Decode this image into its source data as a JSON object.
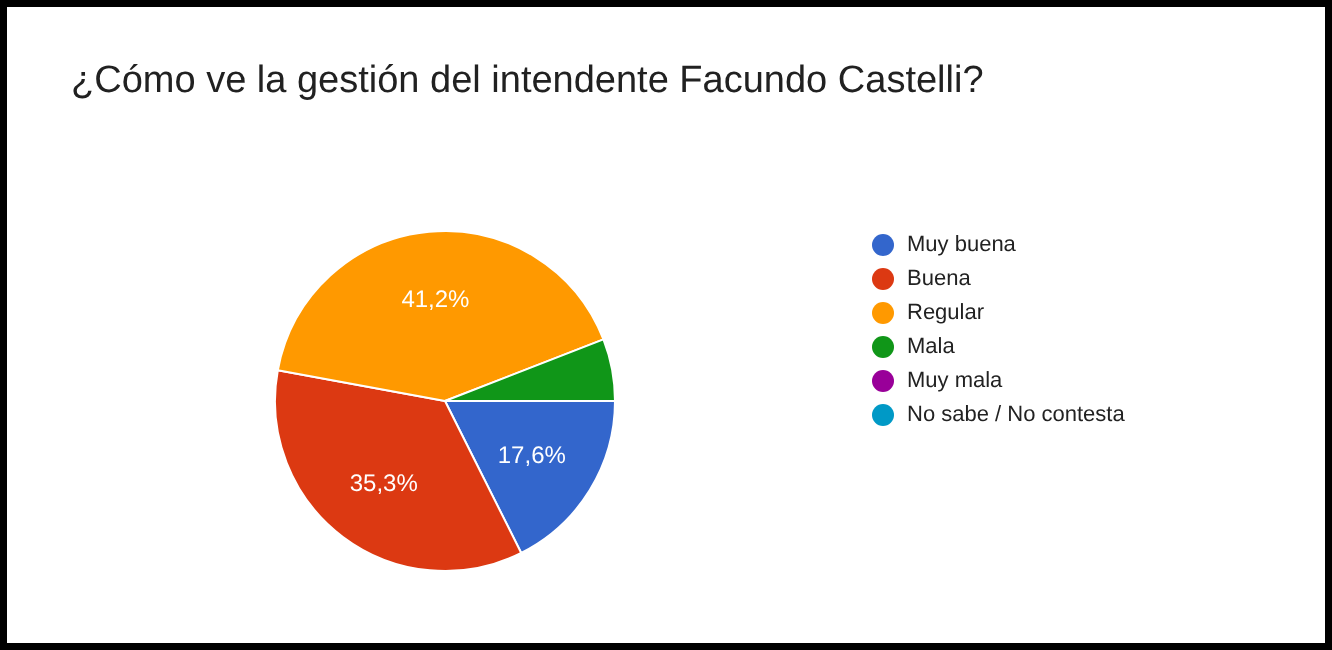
{
  "chart_data": {
    "type": "pie",
    "title": "¿Cómo ve la gestión del intendente Facundo Castelli?",
    "categories": [
      "Muy buena",
      "Buena",
      "Regular",
      "Mala",
      "Muy mala",
      "No sabe / No contesta"
    ],
    "values": [
      17.6,
      35.3,
      41.2,
      5.9,
      0,
      0
    ],
    "colors": [
      "#3366cc",
      "#dc3912",
      "#ff9900",
      "#109618",
      "#990099",
      "#0099c6"
    ],
    "value_labels": [
      "17,6%",
      "35,3%",
      "41,2%",
      null,
      null,
      null
    ],
    "legend": "right"
  }
}
